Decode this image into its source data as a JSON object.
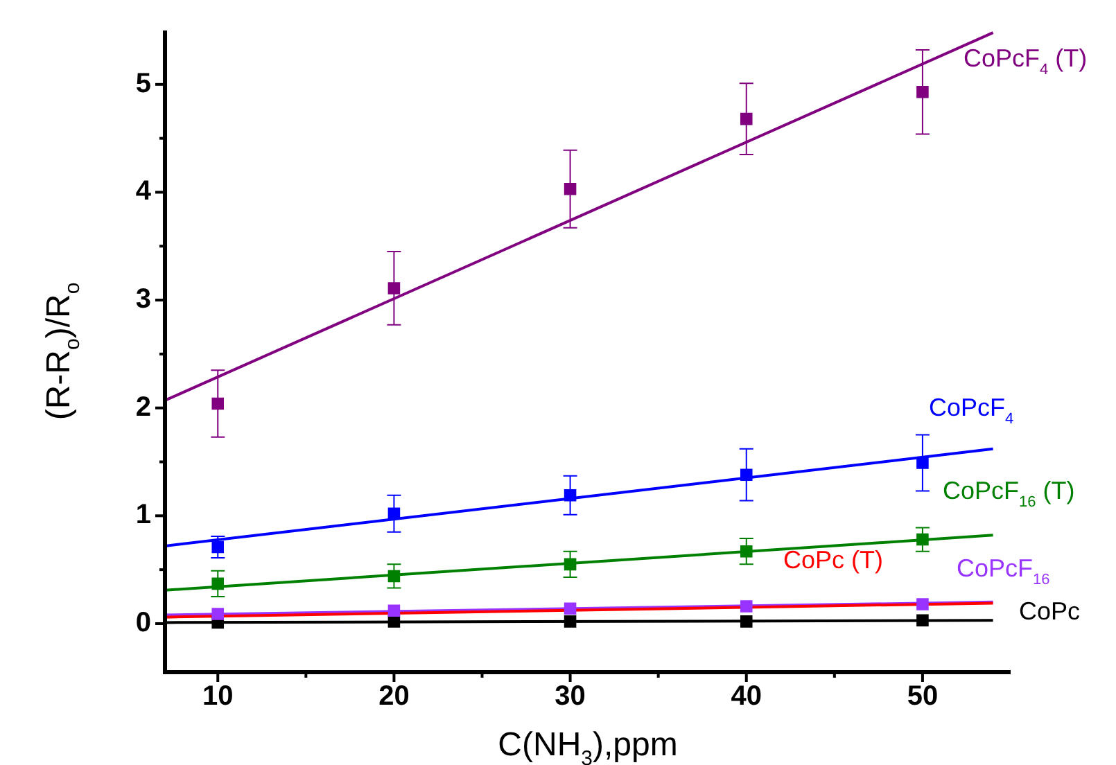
{
  "chart_data": {
    "type": "scatter",
    "xlabel": "C(NH$_{3}$),ppm",
    "ylabel": "(R-R$_{o}$)/R$_{o}$",
    "xlim": [
      7,
      55
    ],
    "ylim": [
      -0.45,
      5.5
    ],
    "xticks": [
      10,
      {
        "value": 15,
        "label": null
      },
      20,
      {
        "value": 25,
        "label": null
      },
      30,
      {
        "value": 35,
        "label": null
      },
      40,
      {
        "value": 45,
        "label": null
      },
      50
    ],
    "yticks": [
      0,
      {
        "value": 0.5,
        "label": null
      },
      1,
      {
        "value": 1.5,
        "label": null
      },
      2,
      {
        "value": 2.5,
        "label": null
      },
      3,
      {
        "value": 3.5,
        "label": null
      },
      4,
      {
        "value": 4.5,
        "label": null
      },
      5
    ],
    "grid": false,
    "legend": false,
    "marker": "square",
    "series": [
      {
        "color": "#800080",
        "x": [
          10,
          20,
          30,
          40,
          50
        ],
        "values": [
          2.04,
          3.11,
          4.03,
          4.68,
          4.93
        ],
        "errors": [
          0.31,
          0.34,
          0.36,
          0.33,
          0.39
        ]
      },
      {
        "type": "line",
        "marker": "none",
        "name": "CoPcF$_{4}$ (T)",
        "color": "#800080",
        "x": [
          7,
          54
        ],
        "values": [
          2.07,
          5.48
        ]
      },
      {
        "color": "#0000ff",
        "x": [
          10,
          20,
          30,
          40,
          50
        ],
        "values": [
          0.71,
          1.02,
          1.19,
          1.38,
          1.49
        ],
        "errors": [
          0.1,
          0.17,
          0.18,
          0.24,
          0.26
        ]
      },
      {
        "type": "line",
        "marker": "none",
        "name": "CoPcF$_{4}$",
        "color": "#0000ff",
        "x": [
          7,
          54
        ],
        "values": [
          0.72,
          1.62
        ]
      },
      {
        "color": "#008000",
        "x": [
          10,
          20,
          30,
          40,
          50
        ],
        "values": [
          0.37,
          0.44,
          0.55,
          0.67,
          0.78
        ],
        "errors": [
          0.12,
          0.11,
          0.12,
          0.12,
          0.11
        ]
      },
      {
        "type": "line",
        "marker": "none",
        "name": "CoPcF$_{16}$ (T)",
        "color": "#008000",
        "x": [
          7,
          54
        ],
        "values": [
          0.31,
          0.82
        ]
      },
      {
        "type": "line",
        "marker": "none",
        "name": "CoPc (T)",
        "color": "#ff0000",
        "x": [
          7,
          54
        ],
        "values": [
          0.06,
          0.19
        ]
      },
      {
        "color": "#9933ff",
        "x": [
          10,
          20,
          30,
          40,
          50
        ],
        "values": [
          0.09,
          0.12,
          0.14,
          0.16,
          0.18
        ]
      },
      {
        "type": "line",
        "marker": "none",
        "name": "CoPcF$_{16}$",
        "color": "#9933ff",
        "x": [
          7,
          54
        ],
        "values": [
          0.08,
          0.2
        ]
      },
      {
        "color": "#000000",
        "x": [
          10,
          20,
          30,
          40,
          50
        ],
        "values": [
          0.01,
          0.02,
          0.02,
          0.02,
          0.03
        ]
      },
      {
        "type": "line",
        "marker": "none",
        "name": "CoPc",
        "color": "#000000",
        "x": [
          7,
          54
        ],
        "values": [
          0.01,
          0.03
        ]
      }
    ]
  }
}
